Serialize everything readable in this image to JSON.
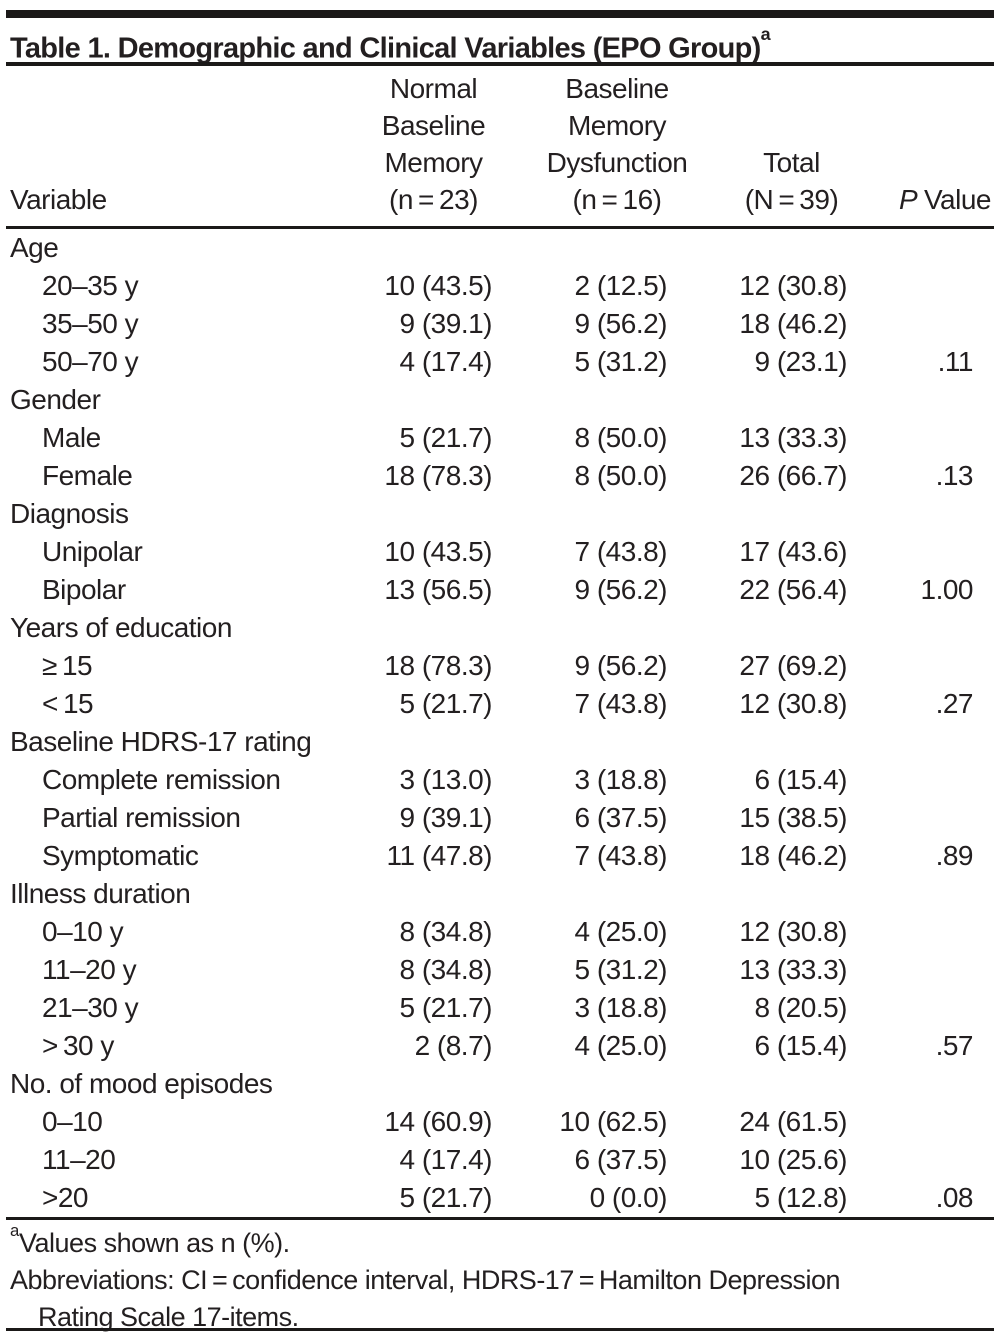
{
  "title": {
    "text": "Table 1. Demographic and Clinical Variables (EPO Group)",
    "superscript": "a"
  },
  "header": {
    "variable": "Variable",
    "normal": {
      "l1": "Normal",
      "l2": "Baseline",
      "l3": "Memory",
      "l4": "(n = 23)"
    },
    "dysfunction": {
      "l1": "Baseline",
      "l2": "Memory",
      "l3": "Dysfunction",
      "l4": "(n = 16)"
    },
    "total": {
      "l1": "Total",
      "l2": "(N = 39)"
    },
    "p": {
      "symbol": "P",
      "label": "Value"
    }
  },
  "rows": [
    {
      "kind": "section",
      "label": "Age"
    },
    {
      "kind": "item",
      "label": "20–35 y",
      "c1": "10 (43.5)",
      "c2": "2 (12.5)",
      "c3": "12 (30.8)",
      "p": ""
    },
    {
      "kind": "item",
      "label": "35–50 y",
      "c1": "9 (39.1)",
      "c2": "9 (56.2)",
      "c3": "18 (46.2)",
      "p": ""
    },
    {
      "kind": "item",
      "label": "50–70 y",
      "c1": "4 (17.4)",
      "c2": "5 (31.2)",
      "c3": "9 (23.1)",
      "p": ".11"
    },
    {
      "kind": "section",
      "label": "Gender"
    },
    {
      "kind": "item",
      "label": "Male",
      "c1": "5 (21.7)",
      "c2": "8 (50.0)",
      "c3": "13 (33.3)",
      "p": ""
    },
    {
      "kind": "item",
      "label": "Female",
      "c1": "18 (78.3)",
      "c2": "8 (50.0)",
      "c3": "26 (66.7)",
      "p": ".13"
    },
    {
      "kind": "section",
      "label": "Diagnosis"
    },
    {
      "kind": "item",
      "label": "Unipolar",
      "c1": "10 (43.5)",
      "c2": "7 (43.8)",
      "c3": "17 (43.6)",
      "p": ""
    },
    {
      "kind": "item",
      "label": "Bipolar",
      "c1": "13 (56.5)",
      "c2": "9 (56.2)",
      "c3": "22 (56.4)",
      "p": "1.00"
    },
    {
      "kind": "section",
      "label": "Years of education"
    },
    {
      "kind": "item",
      "label": "≥ 15",
      "c1": "18 (78.3)",
      "c2": "9 (56.2)",
      "c3": "27 (69.2)",
      "p": ""
    },
    {
      "kind": "item",
      "label": "< 15",
      "c1": "5 (21.7)",
      "c2": "7 (43.8)",
      "c3": "12 (30.8)",
      "p": ".27"
    },
    {
      "kind": "section",
      "label": "Baseline HDRS-17 rating"
    },
    {
      "kind": "item",
      "label": "Complete remission",
      "c1": "3 (13.0)",
      "c2": "3 (18.8)",
      "c3": "6 (15.4)",
      "p": ""
    },
    {
      "kind": "item",
      "label": "Partial remission",
      "c1": "9 (39.1)",
      "c2": "6 (37.5)",
      "c3": "15 (38.5)",
      "p": ""
    },
    {
      "kind": "item",
      "label": "Symptomatic",
      "c1": "11 (47.8)",
      "c2": "7 (43.8)",
      "c3": "18 (46.2)",
      "p": ".89"
    },
    {
      "kind": "section",
      "label": "Illness duration"
    },
    {
      "kind": "item",
      "label": "0–10 y",
      "c1": "8 (34.8)",
      "c2": "4 (25.0)",
      "c3": "12 (30.8)",
      "p": ""
    },
    {
      "kind": "item",
      "label": "11–20 y",
      "c1": "8 (34.8)",
      "c2": "5 (31.2)",
      "c3": "13 (33.3)",
      "p": ""
    },
    {
      "kind": "item",
      "label": "21–30 y",
      "c1": "5 (21.7)",
      "c2": "3 (18.8)",
      "c3": "8 (20.5)",
      "p": ""
    },
    {
      "kind": "item",
      "label": "> 30 y",
      "c1": "2 (8.7)",
      "c2": "4 (25.0)",
      "c3": "6 (15.4)",
      "p": ".57"
    },
    {
      "kind": "section",
      "label": "No. of mood episodes"
    },
    {
      "kind": "item",
      "label": "0–10",
      "c1": "14 (60.9)",
      "c2": "10 (62.5)",
      "c3": "24 (61.5)",
      "p": ""
    },
    {
      "kind": "item",
      "label": "11–20",
      "c1": "4 (17.4)",
      "c2": "6 (37.5)",
      "c3": "10 (25.6)",
      "p": ""
    },
    {
      "kind": "item",
      "label": ">20",
      "c1": "5 (21.7)",
      "c2": "0 (0.0)",
      "c3": "5 (12.8)",
      "p": ".08"
    }
  ],
  "footnotes": {
    "marker": "a",
    "values_note": "Values shown as n (%).",
    "abbr_line1": "Abbreviations: CI = confidence interval, HDRS-17 = Hamilton Depression",
    "abbr_line2": "Rating Scale 17-items."
  },
  "colors": {
    "text": "#231f20",
    "rule": "#1b1918",
    "background": "#ffffff"
  }
}
